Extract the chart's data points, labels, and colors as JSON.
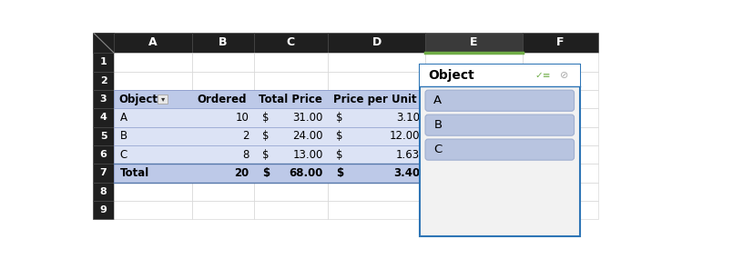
{
  "col_header_bg": "#1f1f1f",
  "col_header_text": "#ffffff",
  "row_header_bg": "#1f1f1f",
  "selected_col_bg": "#3a3a3a",
  "pivot_header_bg": "#bdc9e8",
  "pivot_data_bg": "#dce3f5",
  "pivot_total_bg": "#bdc9e8",
  "slicer_title": "Object",
  "slicer_items": [
    "A",
    "B",
    "C"
  ],
  "slicer_item_bg": "#b8c4e0",
  "slicer_item_border": "#9fafd0",
  "slicer_outer_border": "#2e75b6",
  "slicer_bg": "#f2f2f2",
  "col_labels": [
    "",
    "A",
    "B",
    "C",
    "D",
    "E",
    "F"
  ],
  "row_count": 9,
  "fig_w": 8.16,
  "fig_h": 2.96
}
